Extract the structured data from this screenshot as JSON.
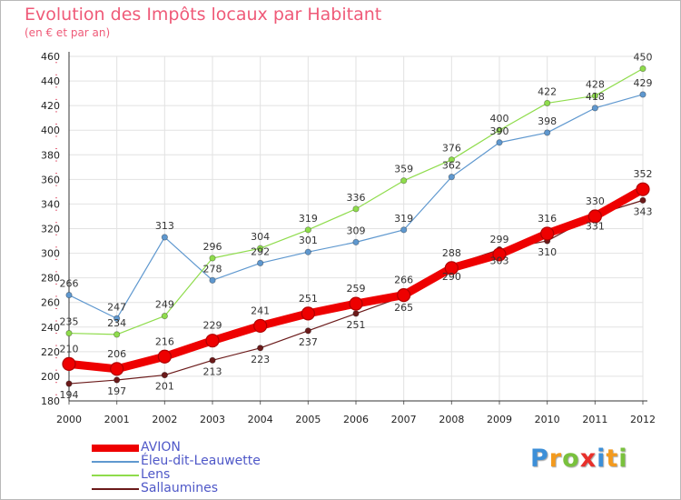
{
  "header": {
    "title": "Evolution des Impôts locaux par Habitant",
    "subtitle": "(en € et par an)"
  },
  "chart_data": {
    "type": "line",
    "title": "Evolution des Impôts locaux par Habitant",
    "subtitle": "(en € et par an)",
    "xlabel": "",
    "ylabel": "",
    "ylim": [
      180,
      460
    ],
    "yticks": [
      180,
      200,
      220,
      240,
      260,
      280,
      300,
      320,
      340,
      360,
      380,
      400,
      420,
      440,
      460
    ],
    "grid": true,
    "legend_position": "bottom-left",
    "categories": [
      "2000",
      "2001",
      "2002",
      "2003",
      "2004",
      "2005",
      "2006",
      "2007",
      "2008",
      "2009",
      "2010",
      "2011",
      "2012"
    ],
    "series": [
      {
        "name": "AVION",
        "color": "#ee0000",
        "values": [
          210,
          206,
          216,
          229,
          241,
          251,
          259,
          266,
          288,
          299,
          316,
          330,
          352
        ],
        "labels": [
          "210",
          "206",
          "216",
          "229",
          "241",
          "251",
          "259",
          "266",
          "288",
          "299",
          "316",
          "330",
          "352"
        ]
      },
      {
        "name": "Éleu-dit-Leauwette",
        "color": "#5f98cf",
        "values": [
          266,
          247,
          313,
          278,
          292,
          301,
          309,
          319,
          362,
          390,
          398,
          418,
          429
        ],
        "labels": [
          "266",
          "247",
          "313",
          "278",
          "292",
          "301",
          "309",
          "319",
          "362",
          "390",
          "398",
          "418",
          "429"
        ]
      },
      {
        "name": "Lens",
        "color": "#8fdc4c",
        "values": [
          235,
          234,
          249,
          296,
          304,
          319,
          336,
          359,
          376,
          400,
          422,
          428,
          450
        ],
        "labels": [
          "235",
          "234",
          "249",
          "296",
          "304",
          "319",
          "336",
          "359",
          "376",
          "400",
          "422",
          "428",
          "450"
        ]
      },
      {
        "name": "Sallaumines",
        "color": "#6b1a1a",
        "values": [
          194,
          197,
          201,
          213,
          223,
          237,
          251,
          265,
          290,
          303,
          310,
          331,
          343
        ],
        "labels": [
          "194",
          "197",
          "201",
          "213",
          "223",
          "237",
          "251",
          "265",
          "290",
          "303",
          "310",
          "331",
          "343"
        ]
      }
    ]
  },
  "legend": {
    "items": [
      {
        "label": "AVION",
        "color": "#ee0000"
      },
      {
        "label": "Éleu-dit-Leauwette",
        "color": "#5f98cf"
      },
      {
        "label": "Lens",
        "color": "#8fdc4c"
      },
      {
        "label": "Sallaumines",
        "color": "#6b1a1a"
      }
    ]
  },
  "logo": {
    "letters": [
      "P",
      "r",
      "o",
      "x",
      "i",
      "t",
      "i"
    ],
    "colors": [
      "#3c8fd8",
      "#f39a1e",
      "#79c13d",
      "#e8302b",
      "#3c8fd8",
      "#f39a1e",
      "#79c13d"
    ]
  }
}
